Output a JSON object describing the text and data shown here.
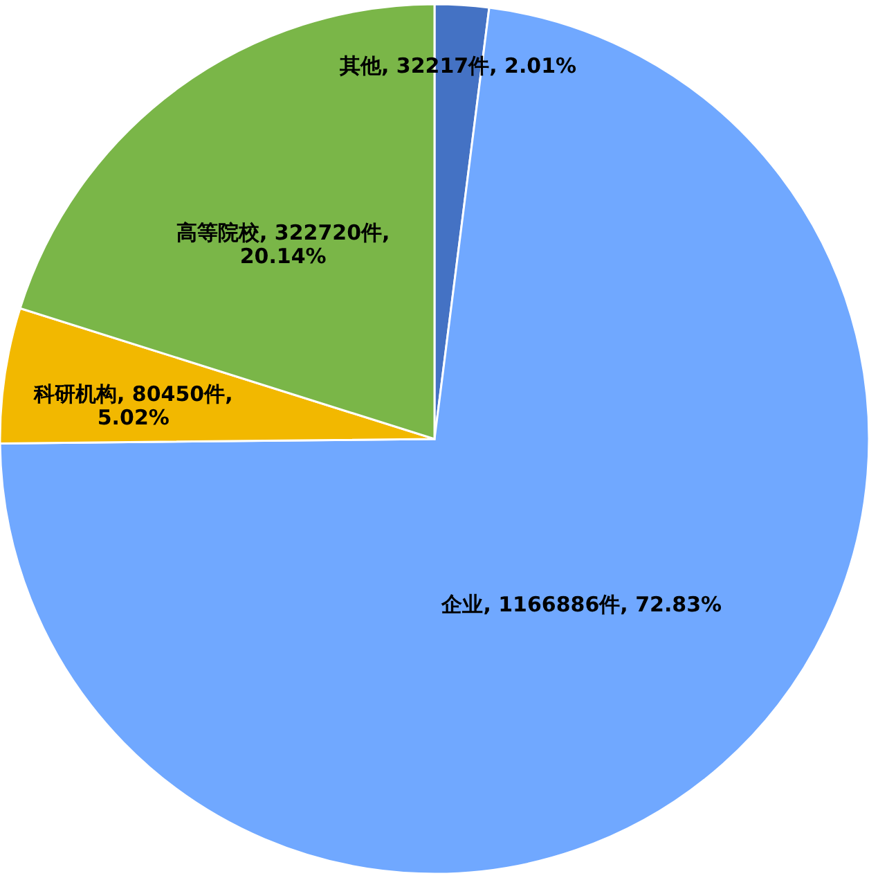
{
  "chart_data": {
    "type": "pie",
    "categories": [
      "其他",
      "企业",
      "科研机构",
      "高等院校"
    ],
    "values": [
      32217,
      1166886,
      80450,
      322720
    ],
    "colors": [
      "#4472c4",
      "#70a8ff",
      "#f2b800",
      "#7ab648"
    ],
    "value_labels": [
      "32217件, 2.01%",
      "1166886件, 72.83%",
      "80450件,\n5.02%",
      "322720件,\n20.14%"
    ]
  }
}
